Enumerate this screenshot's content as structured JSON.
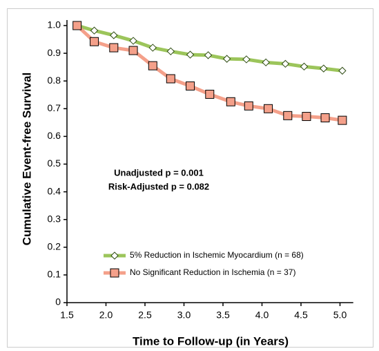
{
  "chart_data": {
    "type": "line",
    "xlabel": "Time to Follow-up (in Years)",
    "ylabel": "Cumulative Event-free Survival",
    "annotations": [
      "Unadjusted p = 0.001",
      "Risk-Adjusted p = 0.082"
    ],
    "xlim": [
      1.5,
      5.17
    ],
    "ylim": [
      0,
      1.02
    ],
    "xticks": [
      1.5,
      {
        "value": 2,
        "label": "2.0"
      },
      2.5,
      {
        "value": 3,
        "label": "3.0"
      },
      3.5,
      {
        "value": 4,
        "label": "4.0"
      },
      4.5,
      {
        "value": 5,
        "label": "5.0"
      }
    ],
    "yticks": [
      0,
      0.1,
      0.2,
      0.3,
      0.4,
      0.5,
      0.6,
      0.7,
      0.8,
      0.9,
      {
        "value": 1,
        "label": "1.0"
      }
    ],
    "series": [
      {
        "name": "5% Reduction in Ischemic Myocardium (n = 68)",
        "color": "#9cc55b",
        "marker": "diamond",
        "x": [
          1.63,
          1.85,
          2.1,
          2.35,
          2.6,
          2.83,
          3.08,
          3.31,
          3.55,
          3.8,
          4.05,
          4.3,
          4.54,
          4.79,
          5.03
        ],
        "values": [
          1.0,
          0.982,
          0.965,
          0.945,
          0.92,
          0.907,
          0.895,
          0.893,
          0.88,
          0.878,
          0.867,
          0.862,
          0.852,
          0.845,
          0.837
        ]
      },
      {
        "name": "No Significant Reduction in Ischemia (n = 37)",
        "color": "#f4a08a",
        "marker": "square",
        "x": [
          1.63,
          1.85,
          2.1,
          2.35,
          2.6,
          2.83,
          3.08,
          3.33,
          3.6,
          3.83,
          4.08,
          4.33,
          4.57,
          4.81,
          5.03
        ],
        "values": [
          1.0,
          0.942,
          0.92,
          0.91,
          0.855,
          0.808,
          0.782,
          0.752,
          0.725,
          0.71,
          0.7,
          0.675,
          0.672,
          0.667,
          0.658
        ]
      }
    ]
  }
}
